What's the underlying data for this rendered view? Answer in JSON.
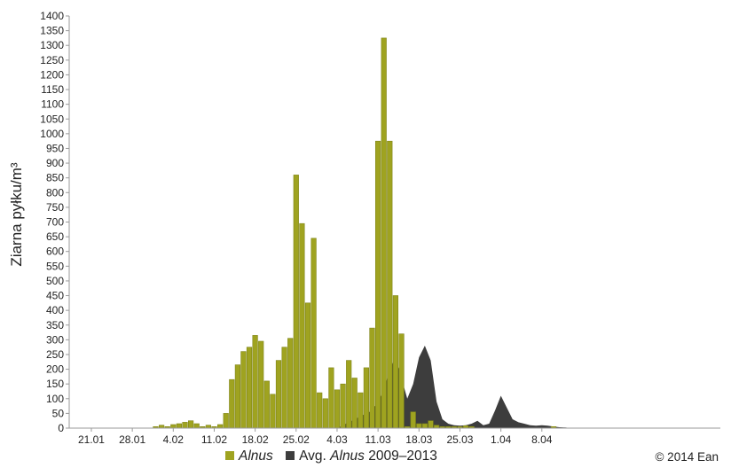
{
  "chart_data": {
    "type": "bar",
    "title": "",
    "ylabel": "Ziarna pyłku/m³",
    "ylim": [
      0,
      1400
    ],
    "ytick_step": 50,
    "x_tick_labels": [
      "21.01",
      "28.01",
      "4.02",
      "11.02",
      "18.02",
      "25.02",
      "4.03",
      "11.03",
      "18.03",
      "25.03",
      "1.04",
      "8.04"
    ],
    "x_tick_day_index": [
      5,
      12,
      19,
      26,
      33,
      40,
      47,
      54,
      61,
      68,
      75,
      82
    ],
    "grid": false,
    "legend_position": "bottom",
    "series": [
      {
        "name": "Alnus",
        "kind": "bar",
        "color": "#9fa320",
        "start_day_index": 0,
        "values": [
          0,
          0,
          0,
          0,
          0,
          0,
          0,
          0,
          0,
          0,
          0,
          0,
          0,
          0,
          0,
          0,
          5,
          10,
          5,
          12,
          15,
          20,
          25,
          15,
          5,
          10,
          5,
          12,
          50,
          165,
          215,
          260,
          275,
          315,
          295,
          160,
          115,
          230,
          275,
          305,
          860,
          695,
          425,
          645,
          120,
          100,
          205,
          130,
          150,
          230,
          170,
          120,
          205,
          340,
          975,
          1325,
          975,
          450,
          320,
          5,
          55,
          15,
          15,
          25,
          10,
          5,
          5,
          5,
          5,
          8,
          5,
          0,
          0,
          0,
          0,
          0,
          0,
          0,
          0,
          0,
          0,
          0,
          0,
          0,
          5,
          0,
          0,
          0,
          0,
          0
        ]
      },
      {
        "name": "Avg. Alnus 2009–2013",
        "kind": "area",
        "color": "#3d3d3d",
        "start_day_index": 0,
        "values": [
          0,
          0,
          0,
          0,
          0,
          0,
          0,
          0,
          0,
          0,
          0,
          0,
          0,
          0,
          0,
          0,
          0,
          0,
          0,
          0,
          0,
          0,
          0,
          0,
          0,
          0,
          0,
          0,
          0,
          0,
          0,
          0,
          0,
          0,
          0,
          0,
          0,
          0,
          0,
          0,
          0,
          0,
          0,
          0,
          0,
          0,
          0,
          0,
          10,
          20,
          30,
          40,
          50,
          60,
          90,
          130,
          200,
          240,
          170,
          100,
          150,
          240,
          280,
          230,
          90,
          30,
          15,
          10,
          8,
          10,
          15,
          25,
          10,
          15,
          60,
          110,
          70,
          30,
          20,
          15,
          10,
          8,
          10,
          8,
          5,
          3,
          2,
          0,
          0,
          0
        ]
      }
    ]
  },
  "legend": {
    "alnus_label": "Alnus",
    "avg_prefix": "Avg.",
    "avg_italic": "Alnus",
    "avg_suffix": "2009–2013"
  },
  "copyright": "© 2014 Ean"
}
